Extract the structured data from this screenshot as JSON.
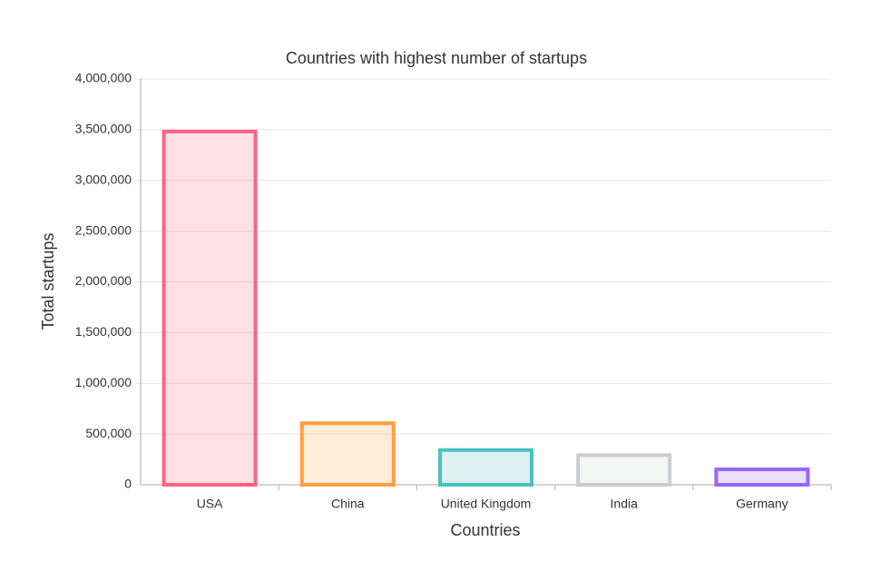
{
  "chart_data": {
    "type": "bar",
    "title": "Countries with highest number of startups",
    "x_label": "Countries",
    "y_label": "Total startups",
    "categories": [
      "USA",
      "China",
      "United Kingdom",
      "India",
      "Germany"
    ],
    "values": [
      3500000,
      625000,
      360000,
      310000,
      170000
    ],
    "colors": [
      "#ff6384",
      "#ff9f40",
      "#4bc0c0",
      "#c9cbcf",
      "#9966ff"
    ],
    "ylim": [
      0,
      4000000
    ],
    "yticks": [
      0,
      {
        "value": 500000,
        "label": "500,000"
      },
      {
        "value": 1000000,
        "label": "1,000,000"
      },
      {
        "value": 1500000,
        "label": "1,500,000"
      },
      {
        "value": 2000000,
        "label": "2,000,000"
      },
      {
        "value": 2500000,
        "label": "2,500,000"
      },
      {
        "value": 3000000,
        "label": "3,000,000"
      },
      {
        "value": 3500000,
        "label": "3,500,000"
      },
      {
        "value": 4000000,
        "label": "4,000,000"
      }
    ],
    "grid": true
  }
}
